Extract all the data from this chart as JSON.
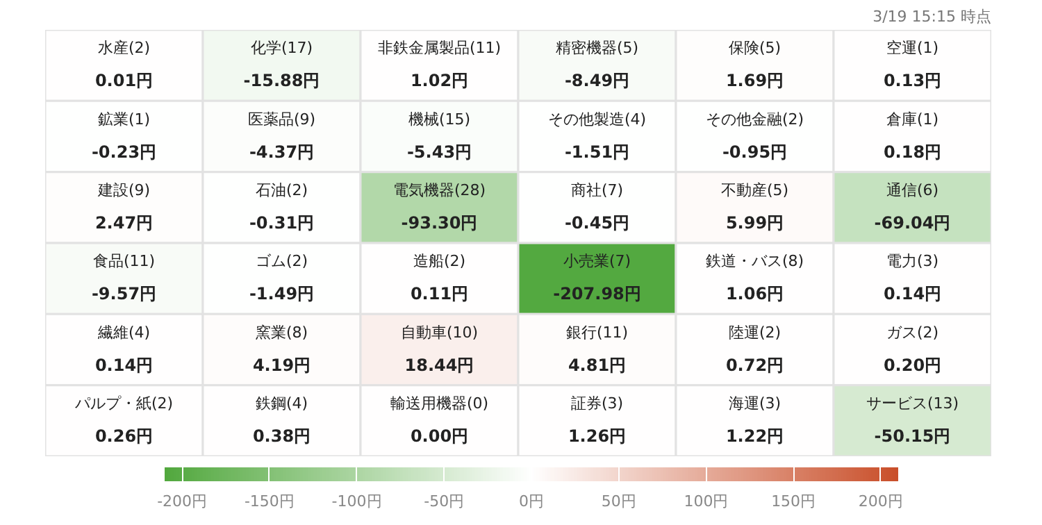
{
  "chart_data": {
    "type": "heatmap",
    "annotations": [
      "3/19 15:15 時点"
    ],
    "categories": [
      null,
      null,
      null,
      null,
      null,
      null
    ],
    "y_categories": [
      null,
      null,
      null,
      null,
      null,
      null
    ],
    "cells": [
      [
        0.01,
        -15.88,
        1.02,
        -8.49,
        1.69,
        0.13
      ],
      [
        -0.23,
        -4.37,
        -5.43,
        -1.51,
        -0.95,
        0.18
      ],
      [
        2.47,
        -0.31,
        -93.3,
        -0.45,
        5.99,
        -69.04
      ],
      [
        -9.57,
        -1.49,
        0.11,
        -207.98,
        1.06,
        0.14
      ],
      [
        0.14,
        4.19,
        18.44,
        4.81,
        0.72,
        0.2
      ],
      [
        0.26,
        0.38,
        0.0,
        1.26,
        1.22,
        -50.15
      ]
    ],
    "cell_labels": [
      [
        "水産(2)\n0.01円",
        "化学(17)\n-15.88円",
        "非鉄金属製品(11)\n1.02円",
        "精密機器(5)\n-8.49円",
        "保険(5)\n1.69円",
        "空運(1)\n0.13円"
      ],
      [
        "鉱業(1)\n-0.23円",
        "医薬品(9)\n-4.37円",
        "機械(15)\n-5.43円",
        "その他製造(4)\n-1.51円",
        "その他金融(2)\n-0.95円",
        "倉庫(1)\n0.18円"
      ],
      [
        "建設(9)\n2.47円",
        "石油(2)\n-0.31円",
        "電気機器(28)\n-93.30円",
        "商社(7)\n-0.45円",
        "不動産(5)\n5.99円",
        "通信(6)\n-69.04円"
      ],
      [
        "食品(11)\n-9.57円",
        "ゴム(2)\n-1.49円",
        "造船(2)\n0.11円",
        "小売業(7)\n-207.98円",
        "鉄道・バス(8)\n1.06円",
        "電力(3)\n0.14円"
      ],
      [
        "繊維(4)\n0.14円",
        "窯業(8)\n4.19円",
        "自動車(10)\n18.44円",
        "銀行(11)\n4.81円",
        "陸運(2)\n0.72円",
        "ガス(2)\n0.20円"
      ],
      [
        "パルプ・紙(2)\n0.26円",
        "鉄鋼(4)\n0.38円",
        "輸送用機器(0)\n0.00円",
        "証券(3)\n1.26円",
        "海運(3)\n1.22円",
        "サービス(13)\n-50.15円"
      ]
    ],
    "clim": [
      -210,
      210
    ],
    "cticks": [
      {
        "value": -200,
        "label": "-200円"
      },
      {
        "value": -150,
        "label": "-150円"
      },
      {
        "value": -100,
        "label": "-100円"
      },
      {
        "value": -50,
        "label": "-50円"
      },
      {
        "value": 0,
        "label": "0円"
      },
      {
        "value": 50,
        "label": "50円"
      },
      {
        "value": 100,
        "label": "100円"
      },
      {
        "value": 150,
        "label": "150円"
      },
      {
        "value": 200,
        "label": "200円"
      }
    ],
    "colors": [
      "#52a83e",
      "#ffffff",
      "#c94f2a"
    ]
  }
}
